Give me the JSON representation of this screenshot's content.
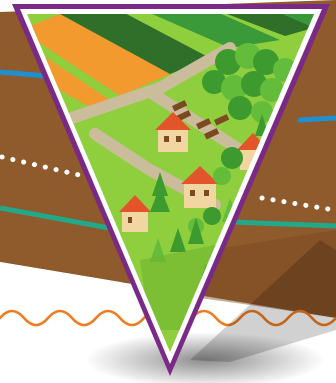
{
  "colors": {
    "ground": "#8f5a2c",
    "ground_dark": "#7a4a22",
    "cutout_white": "#ffffff",
    "wavy_line": "#f07a1e",
    "blue_stripe": "#1e90d0",
    "teal_stripe": "#23a889",
    "dotted_line": "#ffffff",
    "frame_purple": "#7a2a86",
    "frame_white": "#ffffff",
    "grass": "#8fcf3e",
    "grass_dark": "#6fb22f",
    "road": "#cbbd9c",
    "field_orange": "#f29a2e",
    "field_green": "#3a9a3a",
    "field_dark": "#2f6f2a",
    "house_wall": "#f2d6a2",
    "house_roof": "#e2552a",
    "tree": "#3c9a2e",
    "tree_light": "#63bd3a"
  },
  "icons": {
    "scene": "farm-village-landscape",
    "frame": "inverted-triangle-frame"
  }
}
